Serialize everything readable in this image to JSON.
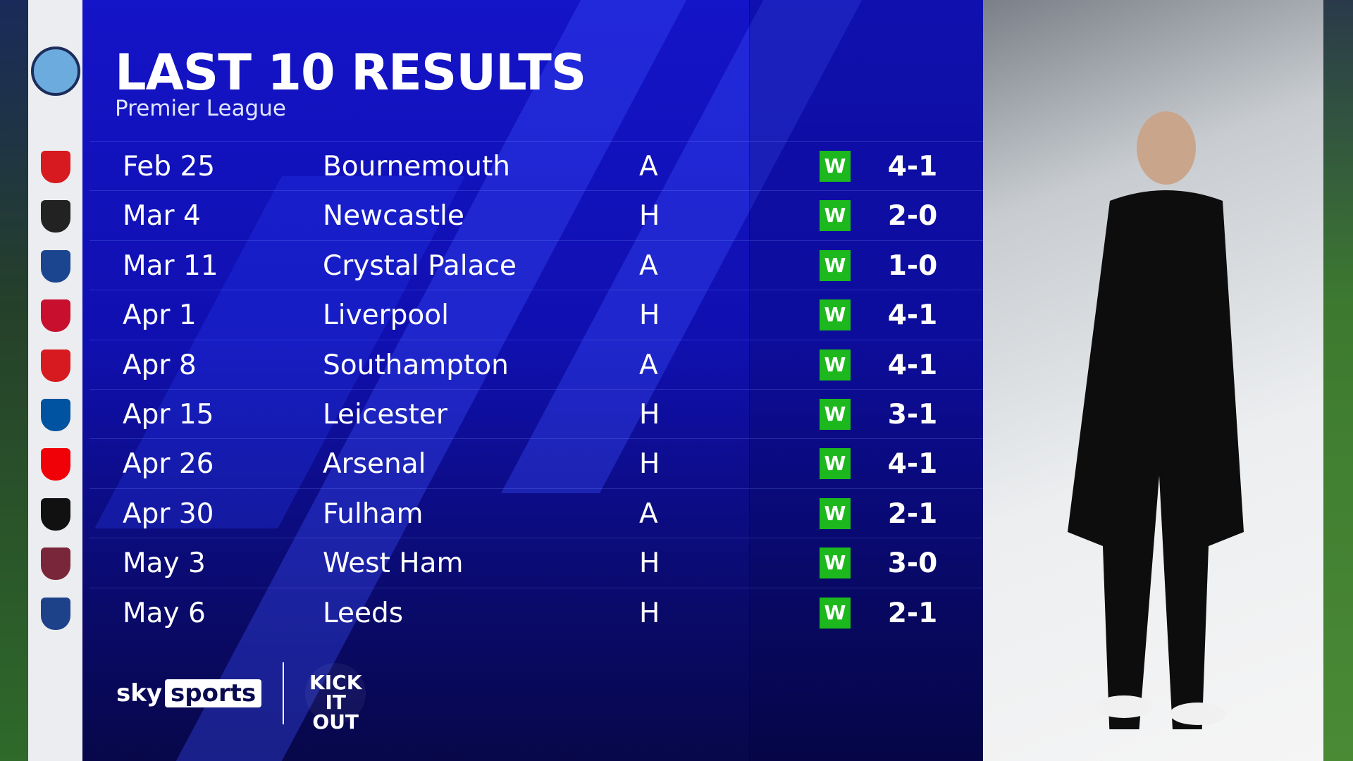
{
  "title": "LAST 10 RESULTS",
  "subtitle": "Premier League",
  "team_crest": "manchester-city-crest",
  "colors": {
    "panel": "#1414c8",
    "win": "#1db81d"
  },
  "results": [
    {
      "date": "Feb 25",
      "opponent": "Bournemouth",
      "venue": "A",
      "result": "W",
      "score": "4-1",
      "crest": "#d71920"
    },
    {
      "date": "Mar 4",
      "opponent": "Newcastle",
      "venue": "H",
      "result": "W",
      "score": "2-0",
      "crest": "#222222"
    },
    {
      "date": "Mar 11",
      "opponent": "Crystal Palace",
      "venue": "A",
      "result": "W",
      "score": "1-0",
      "crest": "#1b458f"
    },
    {
      "date": "Apr 1",
      "opponent": "Liverpool",
      "venue": "H",
      "result": "W",
      "score": "4-1",
      "crest": "#c8102e"
    },
    {
      "date": "Apr 8",
      "opponent": "Southampton",
      "venue": "A",
      "result": "W",
      "score": "4-1",
      "crest": "#d71920"
    },
    {
      "date": "Apr 15",
      "opponent": "Leicester",
      "venue": "H",
      "result": "W",
      "score": "3-1",
      "crest": "#0053a0"
    },
    {
      "date": "Apr 26",
      "opponent": "Arsenal",
      "venue": "H",
      "result": "W",
      "score": "4-1",
      "crest": "#ef0107"
    },
    {
      "date": "Apr 30",
      "opponent": "Fulham",
      "venue": "A",
      "result": "W",
      "score": "2-1",
      "crest": "#111111"
    },
    {
      "date": "May 3",
      "opponent": "West Ham",
      "venue": "H",
      "result": "W",
      "score": "3-0",
      "crest": "#7a263a"
    },
    {
      "date": "May 6",
      "opponent": "Leeds",
      "venue": "H",
      "result": "W",
      "score": "2-1",
      "crest": "#1d428a"
    }
  ],
  "branding": {
    "sky": "sky",
    "sports": "sports",
    "kick_it_out": "KICK IT OUT"
  }
}
